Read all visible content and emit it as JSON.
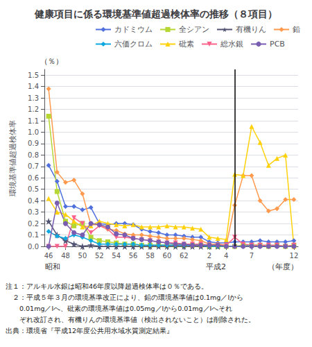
{
  "chart_data": {
    "type": "line",
    "title": "健康項目に係る環境基準値超過検体率の推移（８項目）",
    "ylabel": "環境基準値超過検体率",
    "ylabel_unit": "（％）",
    "xlabel": "（年度）",
    "annotations": [
      {
        "text": "昭和",
        "x_index": 0
      },
      {
        "text": "平成2",
        "x_index": 19
      }
    ],
    "notes": [
      "注１：アルキル水銀は昭和46年度以降超過検体率は０％である。",
      "　２：平成５年３月の環境基準改正により、鉛の環境基準値は0.1mg／lから",
      "　　0.01mg／lへ、砒素の環境基準値は0.05mg／lから0.01mg／lへそれ",
      "　　ぞれ改訂され、有機りんの環境基準値（検出されないこと）は削除された。",
      "出典：環境省『平成12年度公共用水域水質測定結果』"
    ],
    "categories": [
      "46",
      null,
      "48",
      null,
      "50",
      null,
      "52",
      null,
      "54",
      null,
      "56",
      null,
      "58",
      null,
      "60",
      null,
      "62",
      null,
      null,
      "2",
      null,
      "4",
      null,
      null,
      "7",
      null,
      null,
      null,
      null,
      "12"
    ],
    "vline": {
      "x_index": 22,
      "color": "#000000"
    },
    "ylim": [
      0,
      1.55
    ],
    "yticks": [
      {
        "value": 0,
        "label": "0.0"
      },
      0.1,
      0.2,
      0.3,
      0.4,
      0.5,
      0.6,
      0.7,
      0.8,
      0.9,
      {
        "value": 1,
        "label": "1.0"
      },
      1.1,
      1.2,
      1.3,
      1.4,
      1.5
    ],
    "grid": true,
    "legend": "upper right",
    "series": [
      {
        "name": "カドミウム",
        "marker": "diamond",
        "values": [
          0.71,
          0.57,
          0.35,
          0.35,
          0.32,
          0.34,
          0.2,
          0.19,
          0.2,
          0.2,
          0.19,
          0.15,
          0.13,
          0.12,
          0.1,
          0.1,
          0.09,
          0.08,
          0.08,
          0.04,
          0.03,
          0.03,
          0.04,
          0.04,
          0.04,
          0.05,
          0.04,
          0.04,
          0.04,
          0.05
        ]
      },
      {
        "name": "全シアン",
        "marker": "square",
        "values": [
          1.14,
          0.48,
          0.22,
          0.18,
          0.2,
          0.08,
          0.05,
          0.04,
          0.03,
          0.02,
          0.02,
          0.01,
          0.01,
          0.01,
          0.01,
          0.01,
          0.01,
          0.01,
          0.01,
          0.0,
          0.0,
          0.0,
          0.0,
          0.01,
          0.01,
          0.01,
          0.0,
          0.01,
          0.0,
          0.01
        ]
      },
      {
        "name": "有機りん",
        "marker": "star",
        "values": [
          0.22,
          0.1,
          0.05,
          0.02,
          0.0,
          0.01,
          0.0,
          0.0,
          0.0,
          0.0,
          0.0,
          0.0,
          0.0,
          0.0,
          0.0,
          0.0,
          0.0,
          0.0,
          0.0,
          0.0,
          0.0,
          null,
          null,
          null,
          null,
          null,
          null,
          null,
          null,
          null
        ]
      },
      {
        "name": "鉛",
        "marker": "diamond",
        "values": [
          1.38,
          0.65,
          0.56,
          0.58,
          0.46,
          0.19,
          0.19,
          0.15,
          0.14,
          0.11,
          0.1,
          0.1,
          0.09,
          0.08,
          0.07,
          0.07,
          0.07,
          0.06,
          0.05,
          0.02,
          0.02,
          0.01,
          0.36,
          0.62,
          0.62,
          0.4,
          0.31,
          0.33,
          0.41,
          0.41
        ]
      },
      {
        "name": "六価クロム",
        "marker": "diamond",
        "values": [
          0.13,
          0.09,
          0.07,
          0.1,
          0.08,
          0.05,
          0.02,
          0.02,
          0.02,
          0.02,
          0.02,
          0.01,
          0.01,
          0.01,
          0.01,
          0.01,
          0.01,
          0.01,
          0.01,
          0.0,
          0.0,
          0.0,
          0.0,
          0.0,
          0.01,
          0.0,
          0.01,
          0.0,
          0.0,
          0.0
        ]
      },
      {
        "name": "砒素",
        "marker": "triangle",
        "values": [
          0.42,
          0.3,
          0.28,
          0.22,
          0.17,
          0.18,
          0.22,
          0.2,
          0.19,
          0.18,
          0.19,
          0.17,
          0.17,
          0.17,
          0.18,
          0.17,
          0.17,
          0.16,
          0.15,
          0.08,
          0.07,
          0.06,
          0.63,
          0.62,
          1.05,
          0.91,
          0.71,
          0.77,
          0.8,
          0.0
        ]
      },
      {
        "name": "総水銀",
        "marker": "triangle-down",
        "values": [
          0.0,
          0.0,
          0.0,
          0.25,
          0.2,
          0.12,
          0.18,
          0.15,
          0.08,
          0.08,
          0.07,
          0.06,
          0.05,
          0.04,
          0.03,
          0.03,
          0.02,
          0.02,
          0.02,
          0.01,
          0.01,
          0.01,
          0.08,
          0.02,
          0.01,
          0.01,
          0.01,
          0.01,
          0.0,
          0.01
        ]
      },
      {
        "name": "PCB",
        "marker": "circle",
        "values": [
          0.0,
          0.38,
          0.2,
          0.12,
          0.1,
          0.2,
          0.19,
          0.17,
          0.11,
          0.1,
          0.07,
          0.06,
          0.05,
          0.04,
          0.03,
          0.02,
          0.02,
          0.01,
          0.01,
          0.01,
          0.01,
          0.0,
          0.0,
          0.0,
          0.0,
          0.0,
          0.0,
          0.0,
          0.0,
          0.0
        ]
      }
    ]
  }
}
